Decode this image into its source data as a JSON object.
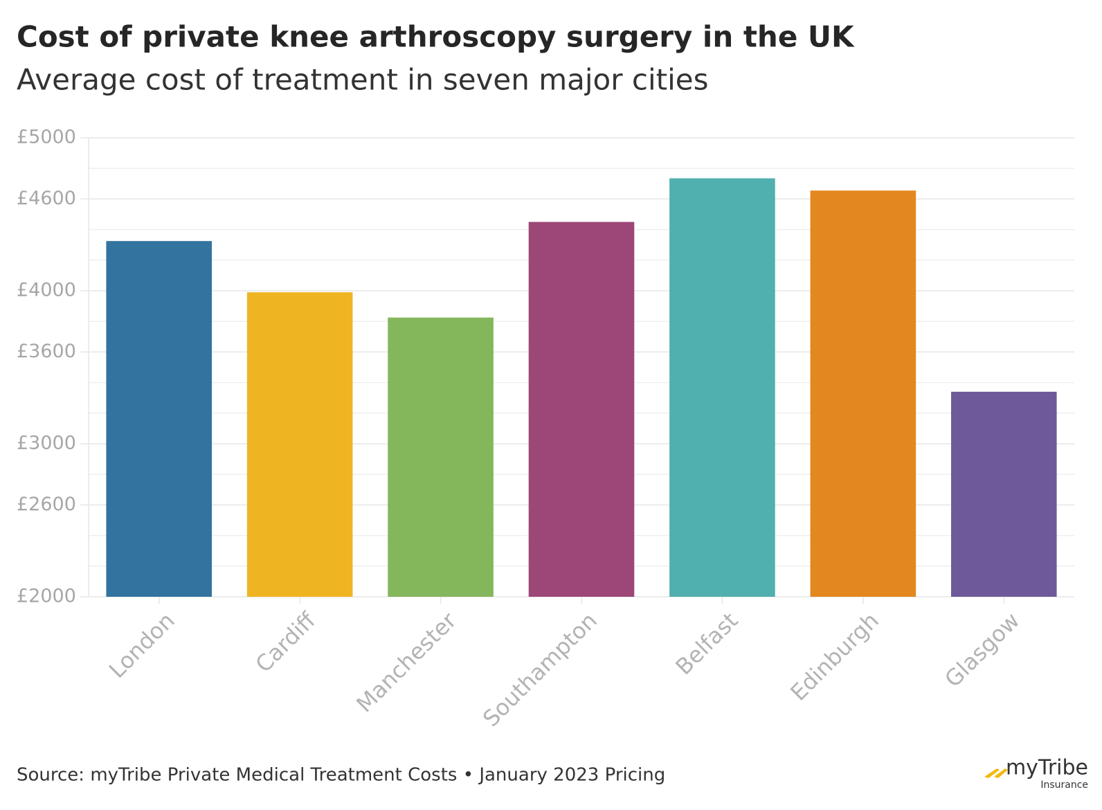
{
  "chart_data": {
    "type": "bar",
    "title": "Cost of private knee arthroscopy surgery in the UK",
    "subtitle": "Average cost of treatment in seven major cities",
    "categories": [
      "London",
      "Cardiff",
      "Manchester",
      "Southampton",
      "Belfast",
      "Edinburgh",
      "Glasgow"
    ],
    "values": [
      4325,
      3990,
      3825,
      4450,
      4735,
      4655,
      3340
    ],
    "colors": [
      "#33739f",
      "#eeb422",
      "#84b65c",
      "#9c4777",
      "#50afaf",
      "#e3871f",
      "#6e5a9b"
    ],
    "ylim": [
      2000,
      5000
    ],
    "yticks": [
      {
        "value": 2000,
        "label": "£2000"
      },
      {
        "value": 2600,
        "label": "£2600"
      },
      {
        "value": 3000,
        "label": "£3000"
      },
      {
        "value": 3600,
        "label": "£3600"
      },
      {
        "value": 4000,
        "label": "£4000"
      },
      {
        "value": 4600,
        "label": "£4600"
      },
      {
        "value": 5000,
        "label": "£5000"
      }
    ],
    "minor_yticks": [
      2200,
      2400,
      2800,
      3200,
      3400,
      3800,
      4200,
      4400,
      4800
    ],
    "grid": true,
    "source": "Source: myTribe Private Medical Treatment Costs • January 2023 Pricing",
    "logo": {
      "name": "myTribe",
      "sub": "Insurance"
    }
  }
}
